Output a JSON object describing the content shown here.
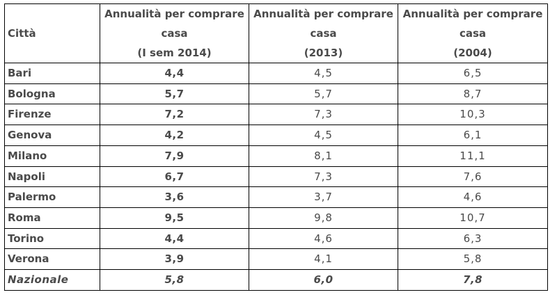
{
  "table": {
    "header": {
      "city": "Città",
      "columns": [
        {
          "line1": "Annualità per comprare",
          "line2": "casa",
          "line3": "(I sem 2014)"
        },
        {
          "line1": "Annualità per comprare",
          "line2": "casa",
          "line3": "(2013)"
        },
        {
          "line1": "Annualità per comprare",
          "line2": "casa",
          "line3": "(2004)"
        }
      ]
    },
    "rows": [
      {
        "city": "Bari",
        "v2014": "4,4",
        "v2013": "4,5",
        "v2004": "6,5"
      },
      {
        "city": "Bologna",
        "v2014": "5,7",
        "v2013": "5,7",
        "v2004": "8,7"
      },
      {
        "city": "Firenze",
        "v2014": "7,2",
        "v2013": "7,3",
        "v2004": "10,3"
      },
      {
        "city": "Genova",
        "v2014": "4,2",
        "v2013": "4,5",
        "v2004": "6,1"
      },
      {
        "city": "Milano",
        "v2014": "7,9",
        "v2013": "8,1",
        "v2004": "11,1"
      },
      {
        "city": "Napoli",
        "v2014": "6,7",
        "v2013": "7,3",
        "v2004": "7,6"
      },
      {
        "city": "Palermo",
        "v2014": "3,6",
        "v2013": "3,7",
        "v2004": "4,6"
      },
      {
        "city": "Roma",
        "v2014": "9,5",
        "v2013": "9,8",
        "v2004": "10,7"
      },
      {
        "city": "Torino",
        "v2014": "4,4",
        "v2013": "4,6",
        "v2004": "6,3"
      },
      {
        "city": "Verona",
        "v2014": "3,9",
        "v2013": "4,1",
        "v2004": "5,8"
      }
    ],
    "total": {
      "city": "Nazionale",
      "v2014": "5,8",
      "v2013": "6,0",
      "v2004": "7,8"
    }
  }
}
